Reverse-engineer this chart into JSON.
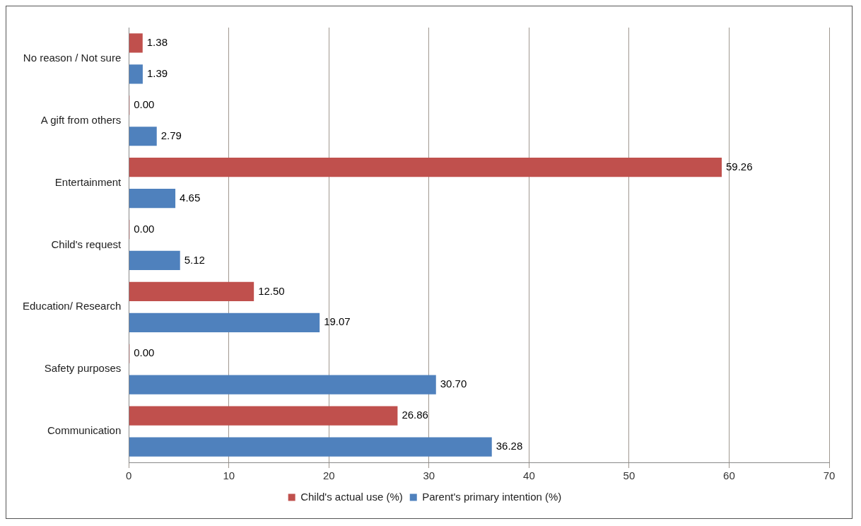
{
  "chart_data": {
    "type": "bar",
    "orientation": "horizontal",
    "categories": [
      "No reason / Not sure",
      "A gift from others",
      "Entertainment",
      "Child's request",
      "Education/ Research",
      "Safety purposes",
      "Communication"
    ],
    "series": [
      {
        "name": "Child's actual use (%)",
        "color": "#c0504d",
        "values": [
          1.38,
          0,
          59.26,
          0,
          12.5,
          0,
          26.86
        ],
        "value_labels": [
          "1.38",
          "0.00",
          "59.26",
          "0.00",
          "12.50",
          "0.00",
          "26.86"
        ]
      },
      {
        "name": "Parent's primary intention (%)",
        "color": "#4f81bd",
        "values": [
          1.39,
          2.79,
          4.65,
          5.12,
          19.07,
          30.7,
          36.28
        ],
        "value_labels": [
          "1.39",
          "2.79",
          "4.65",
          "5.12",
          "19.07",
          "30.70",
          "36.28"
        ]
      }
    ],
    "xlim": [
      0,
      70
    ],
    "xticks": [
      0,
      10,
      20,
      30,
      40,
      50,
      60,
      70
    ],
    "grid": "x",
    "legend": "bottom"
  }
}
